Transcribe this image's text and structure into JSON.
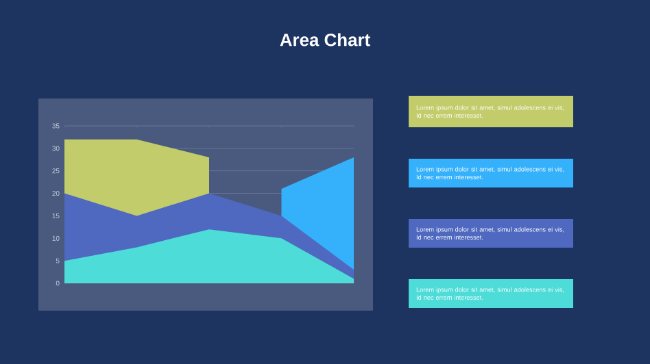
{
  "chart_data": {
    "type": "area",
    "title": "Area Chart",
    "categories": [
      null,
      null,
      null,
      null,
      null
    ],
    "series": [
      {
        "color": "#c2cc6a",
        "values": [
          32,
          32,
          28,
          null,
          null
        ]
      },
      {
        "color": "#35b0fb",
        "values": [
          null,
          null,
          null,
          21,
          28
        ]
      },
      {
        "color": "#4f68c0",
        "values": [
          20,
          15,
          20,
          15,
          3
        ]
      },
      {
        "color": "#4ddcd8",
        "values": [
          5,
          8,
          12,
          10,
          1
        ]
      }
    ],
    "ylim": [
      0,
      35
    ],
    "yticks": [
      0,
      5,
      10,
      15,
      20,
      25,
      30,
      35
    ],
    "grid": "y",
    "annotations": [
      "Lorem ipsum dolor sit amet, simul adolescens ei vis, Id nec errem  interesset.",
      "Lorem ipsum dolor sit amet, simul adolescens ei vis, Id nec errem  interesset.",
      "Lorem ipsum dolor sit amet, simul adolescens ei vis, Id nec errem  interesset.",
      "Lorem ipsum dolor sit amet, simul adolescens ei vis, Id nec errem  interesset."
    ]
  }
}
